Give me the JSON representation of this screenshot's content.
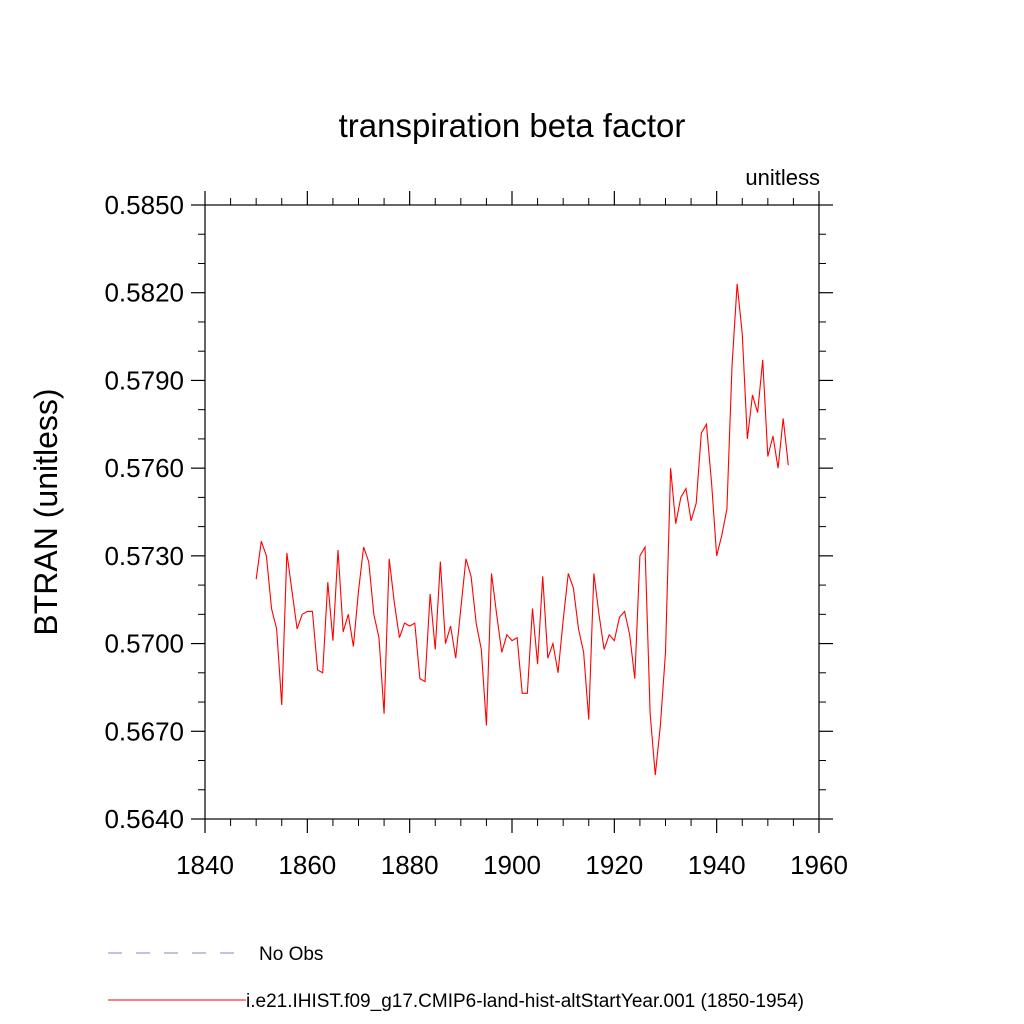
{
  "chart_data": {
    "type": "line",
    "title": "transpiration beta factor",
    "unit_note": "unitless",
    "ylabel": "BTRAN  (unitless)",
    "xlabel": "",
    "xlim": [
      1840,
      1960
    ],
    "ylim": [
      0.564,
      0.585
    ],
    "x_ticks": [
      1840,
      1860,
      1880,
      1900,
      1920,
      1940,
      1960
    ],
    "x_tick_labels": [
      "1840",
      "1860",
      "1880",
      "1900",
      "1920",
      "1940",
      "1960"
    ],
    "y_ticks": [
      0.564,
      0.567,
      0.57,
      0.573,
      0.576,
      0.579,
      0.582,
      0.585
    ],
    "y_tick_labels": [
      "0.5640",
      "0.5670",
      "0.5700",
      "0.5730",
      "0.5760",
      "0.5790",
      "0.5820",
      "0.5850"
    ],
    "grid": false,
    "legend": {
      "placement": "bottom",
      "entries": [
        {
          "label": "No Obs",
          "color": "#8c7fbf",
          "style": "dashed"
        },
        {
          "label": "i.e21.IHIST.f09_g17.CMIP6-land-hist-altStartYear.001 (1850-1954)",
          "color": "#ff0000",
          "style": "solid"
        }
      ]
    },
    "series": [
      {
        "name": "i.e21.IHIST.f09_g17.CMIP6-land-hist-altStartYear.001 (1850-1954)",
        "color": "#ff0000",
        "x_start": 1850,
        "x_step": 1,
        "values": [
          0.5722,
          0.5735,
          0.573,
          0.5712,
          0.5705,
          0.5679,
          0.5731,
          0.5718,
          0.5705,
          0.571,
          0.5711,
          0.5711,
          0.5691,
          0.569,
          0.5721,
          0.5701,
          0.5732,
          0.5704,
          0.571,
          0.5699,
          0.5718,
          0.5733,
          0.5728,
          0.571,
          0.5702,
          0.5676,
          0.5729,
          0.5714,
          0.5702,
          0.5707,
          0.5706,
          0.5707,
          0.5688,
          0.5687,
          0.5717,
          0.5698,
          0.5728,
          0.57,
          0.5706,
          0.5695,
          0.5712,
          0.5729,
          0.5723,
          0.5707,
          0.5698,
          0.5672,
          0.5724,
          0.571,
          0.5697,
          0.5703,
          0.5701,
          0.5702,
          0.5683,
          0.5683,
          0.5712,
          0.5693,
          0.5723,
          0.5695,
          0.57,
          0.569,
          0.5708,
          0.5724,
          0.5719,
          0.5705,
          0.5697,
          0.5674,
          0.5724,
          0.571,
          0.5698,
          0.5703,
          0.5701,
          0.5709,
          0.5711,
          0.5703,
          0.5688,
          0.573,
          0.5733,
          0.5676,
          0.5655,
          0.5672,
          0.5697,
          0.576,
          0.5741,
          0.575,
          0.5753,
          0.5742,
          0.5748,
          0.5772,
          0.5775,
          0.5755,
          0.573,
          0.5737,
          0.5746,
          0.5795,
          0.5823,
          0.5806,
          0.577,
          0.5785,
          0.5779,
          0.5797,
          0.5764,
          0.5771,
          0.576,
          0.5777,
          0.5761
        ]
      }
    ]
  }
}
